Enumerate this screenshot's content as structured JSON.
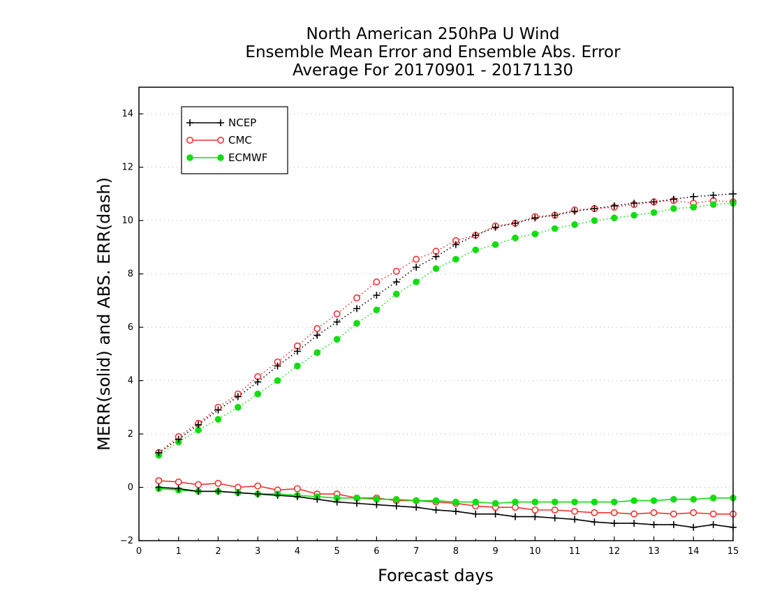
{
  "chart_data": {
    "type": "line",
    "title": [
      "North American 250hPa U Wind",
      "Ensemble Mean Error and Ensemble Abs. Error",
      "Average For 20170901 - 20171130"
    ],
    "xlabel": "Forecast days",
    "ylabel": "MERR(solid) and ABS. ERR(dash)",
    "xlim": [
      0,
      15
    ],
    "ylim": [
      -2,
      15
    ],
    "xticks": [
      0,
      1,
      2,
      3,
      4,
      5,
      6,
      7,
      8,
      9,
      10,
      11,
      12,
      13,
      14,
      15
    ],
    "yticks": [
      -2,
      0,
      2,
      4,
      6,
      8,
      10,
      12,
      14
    ],
    "grid": "horizontal dotted",
    "legend_position": "top-left",
    "x": [
      0.5,
      1,
      1.5,
      2,
      2.5,
      3,
      3.5,
      4,
      4.5,
      5,
      5.5,
      6,
      6.5,
      7,
      7.5,
      8,
      8.5,
      9,
      9.5,
      10,
      10.5,
      11,
      11.5,
      12,
      12.5,
      13,
      13.5,
      14,
      14.5,
      15
    ],
    "series": [
      {
        "name": "NCEP",
        "color": "#000000",
        "marker": "plus",
        "abs_error": [
          1.3,
          1.8,
          2.35,
          2.9,
          3.4,
          3.95,
          4.55,
          5.1,
          5.7,
          6.2,
          6.7,
          7.2,
          7.7,
          8.25,
          8.65,
          9.1,
          9.45,
          9.75,
          9.9,
          10.1,
          10.2,
          10.35,
          10.45,
          10.55,
          10.65,
          10.7,
          10.8,
          10.9,
          10.95,
          11.0
        ],
        "mean_error": [
          0.0,
          -0.05,
          -0.15,
          -0.15,
          -0.2,
          -0.25,
          -0.3,
          -0.35,
          -0.45,
          -0.55,
          -0.6,
          -0.65,
          -0.7,
          -0.75,
          -0.85,
          -0.9,
          -1.0,
          -1.0,
          -1.1,
          -1.1,
          -1.15,
          -1.2,
          -1.3,
          -1.35,
          -1.35,
          -1.4,
          -1.4,
          -1.5,
          -1.4,
          -1.5
        ]
      },
      {
        "name": "CMC",
        "color": "#ee3333",
        "marker": "open-circle",
        "abs_error": [
          1.3,
          1.9,
          2.4,
          3.0,
          3.5,
          4.15,
          4.7,
          5.3,
          5.95,
          6.5,
          7.1,
          7.7,
          8.1,
          8.55,
          8.85,
          9.25,
          9.45,
          9.8,
          9.9,
          10.15,
          10.2,
          10.4,
          10.45,
          10.5,
          10.6,
          10.7,
          10.75,
          10.65,
          10.75,
          10.7
        ],
        "mean_error": [
          0.25,
          0.2,
          0.1,
          0.15,
          0.0,
          0.05,
          -0.1,
          -0.05,
          -0.25,
          -0.25,
          -0.4,
          -0.4,
          -0.5,
          -0.5,
          -0.55,
          -0.6,
          -0.7,
          -0.75,
          -0.75,
          -0.85,
          -0.85,
          -0.9,
          -0.95,
          -0.95,
          -1.0,
          -0.95,
          -1.0,
          -0.95,
          -1.0,
          -1.0
        ]
      },
      {
        "name": "ECMWF",
        "color": "#11dd11",
        "marker": "filled-circle",
        "abs_error": [
          1.2,
          1.7,
          2.15,
          2.55,
          3.0,
          3.5,
          4.0,
          4.55,
          5.05,
          5.55,
          6.15,
          6.65,
          7.25,
          7.7,
          8.2,
          8.55,
          8.9,
          9.1,
          9.35,
          9.5,
          9.7,
          9.85,
          10.0,
          10.1,
          10.2,
          10.3,
          10.45,
          10.5,
          10.6,
          10.65
        ],
        "mean_error": [
          -0.05,
          -0.1,
          -0.15,
          -0.15,
          -0.2,
          -0.25,
          -0.25,
          -0.3,
          -0.35,
          -0.4,
          -0.4,
          -0.45,
          -0.45,
          -0.5,
          -0.5,
          -0.55,
          -0.55,
          -0.6,
          -0.55,
          -0.55,
          -0.55,
          -0.55,
          -0.55,
          -0.55,
          -0.5,
          -0.5,
          -0.45,
          -0.45,
          -0.4,
          -0.4
        ]
      }
    ]
  }
}
